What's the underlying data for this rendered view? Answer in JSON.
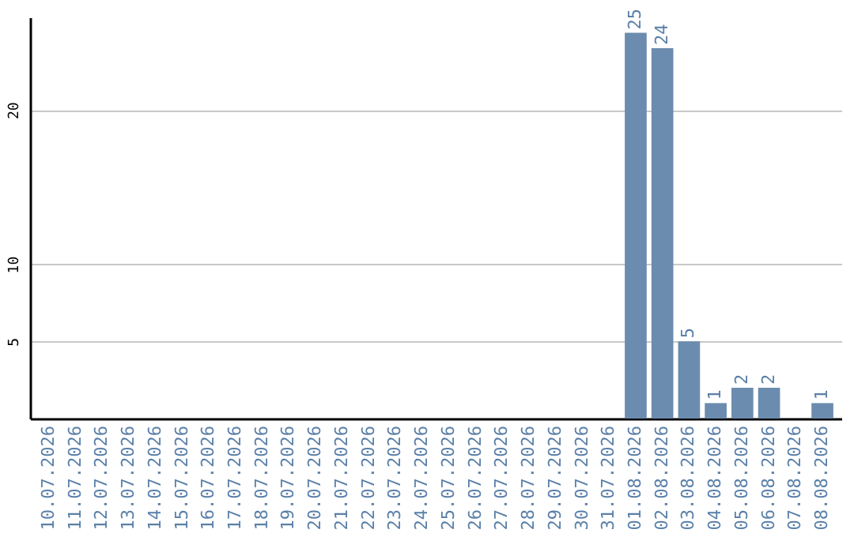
{
  "chart_data": {
    "type": "bar",
    "categories": [
      "10.07.2026",
      "11.07.2026",
      "12.07.2026",
      "13.07.2026",
      "14.07.2026",
      "15.07.2026",
      "16.07.2026",
      "17.07.2026",
      "18.07.2026",
      "19.07.2026",
      "20.07.2026",
      "21.07.2026",
      "22.07.2026",
      "23.07.2026",
      "24.07.2026",
      "25.07.2026",
      "26.07.2026",
      "27.07.2026",
      "28.07.2026",
      "29.07.2026",
      "30.07.2026",
      "31.07.2026",
      "01.08.2026",
      "02.08.2026",
      "03.08.2026",
      "04.08.2026",
      "05.08.2026",
      "06.08.2026",
      "07.08.2026",
      "08.08.2026"
    ],
    "values": [
      0,
      0,
      0,
      0,
      0,
      0,
      0,
      0,
      0,
      0,
      0,
      0,
      0,
      0,
      0,
      0,
      0,
      0,
      0,
      0,
      0,
      0,
      25,
      24,
      5,
      1,
      2,
      2,
      0,
      1
    ],
    "value_labels": [
      null,
      null,
      null,
      null,
      null,
      null,
      null,
      null,
      null,
      null,
      null,
      null,
      null,
      null,
      null,
      null,
      null,
      null,
      null,
      null,
      null,
      null,
      "25",
      "24",
      "5",
      "1",
      "2",
      "2",
      null,
      "1"
    ],
    "color": "#6b8cae",
    "ylim": [
      0,
      26
    ],
    "yticks": [
      5,
      10,
      20
    ],
    "grid": "y"
  }
}
